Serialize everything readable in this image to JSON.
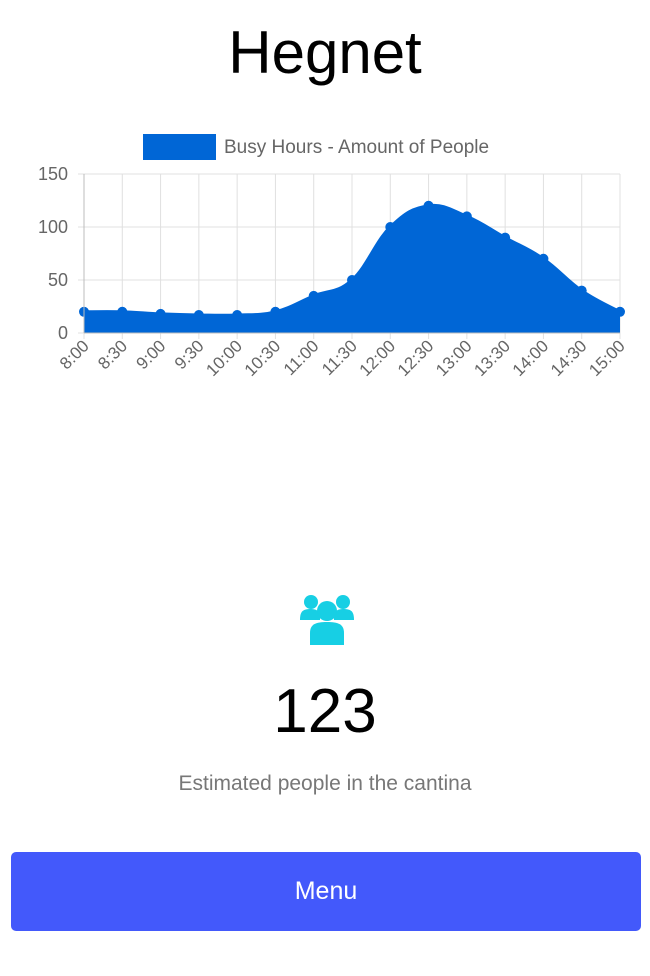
{
  "page": {
    "title": "Hegnet",
    "estimate_value": "123",
    "estimate_label": "Estimated people in the cantina",
    "menu_label": "Menu",
    "icon": "users-icon"
  },
  "colors": {
    "chart_fill": "#0066d6",
    "chart_line": "#0066d6",
    "icon": "#17cfe4",
    "button": "#4359fb",
    "grid": "#e0e0e0",
    "axis_text": "#666666"
  },
  "chart_data": {
    "type": "area",
    "legend": "Busy Hours - Amount of People",
    "legend_position": "top",
    "grid": true,
    "ylim": [
      0,
      150
    ],
    "yticks": [
      0,
      50,
      100,
      150
    ],
    "categories": [
      "8:00",
      "8:30",
      "9:00",
      "9:30",
      "10:00",
      "10:30",
      "11:00",
      "11:30",
      "12:00",
      "12:30",
      "13:00",
      "13:30",
      "14:00",
      "14:30",
      "15:00"
    ],
    "series": [
      {
        "name": "Busy Hours - Amount of People",
        "values": [
          20,
          20,
          18,
          17,
          17,
          20,
          35,
          50,
          100,
          120,
          110,
          90,
          70,
          40,
          20
        ]
      }
    ]
  }
}
